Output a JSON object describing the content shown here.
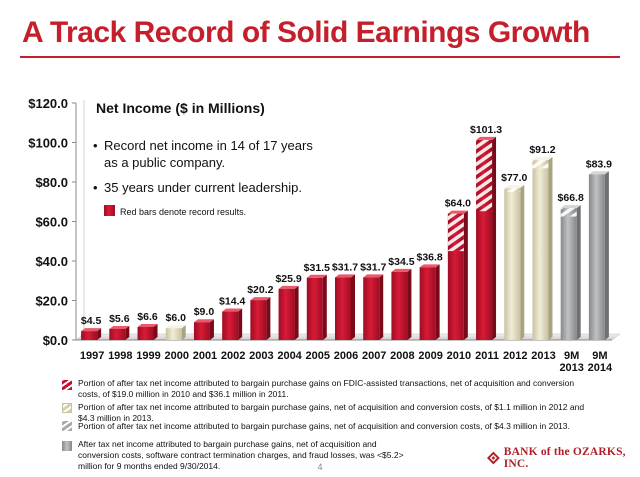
{
  "slide_title": "A Track Record of Solid Earnings Growth",
  "page_number": "4",
  "logo_text": "BANK of the OZARKS, INC.",
  "chart_data": {
    "type": "bar",
    "title": "Net Income ($ in Millions)",
    "xlabel": "",
    "ylabel": "",
    "ylim": [
      0,
      120
    ],
    "y_ticks": [
      "$0.0",
      "$20.0",
      "$40.0",
      "$60.0",
      "$80.0",
      "$100.0",
      "$120.0"
    ],
    "y_tick_values": [
      0,
      20,
      40,
      60,
      80,
      100,
      120
    ],
    "grid": false,
    "categories": [
      "1997",
      "1998",
      "1999",
      "2000",
      "2001",
      "2002",
      "2003",
      "2004",
      "2005",
      "2006",
      "2007",
      "2008",
      "2009",
      "2010",
      "2011",
      "2012",
      "2013",
      "9M 2013",
      "9M 2014"
    ],
    "values": [
      4.5,
      5.6,
      6.6,
      6.0,
      9.0,
      14.4,
      20.2,
      25.9,
      31.5,
      31.7,
      31.7,
      34.5,
      36.8,
      64.0,
      101.3,
      77.0,
      91.2,
      66.8,
      83.9
    ],
    "data_labels": [
      "$4.5",
      "$5.6",
      "$6.6",
      "$6.0",
      "$9.0",
      "$14.4",
      "$20.2",
      "$25.9",
      "$31.5",
      "$31.7",
      "$31.7",
      "$34.5",
      "$36.8",
      "$64.0",
      "$101.3",
      "$77.0",
      "$91.2",
      "$66.8",
      "$83.9"
    ],
    "bar_styles": [
      "record",
      "record",
      "record",
      "tan",
      "record",
      "record",
      "record",
      "record",
      "record",
      "record",
      "record",
      "record",
      "record",
      "record",
      "record",
      "tan",
      "tan",
      "gray",
      "gray"
    ],
    "hatched_portion": [
      0,
      0,
      0,
      0,
      0,
      0,
      0,
      0,
      0,
      0,
      0,
      0,
      0,
      19.0,
      36.1,
      1.1,
      4.3,
      4.3,
      0
    ],
    "annotations": [
      "Record net income in 14 of 17 years as a public company.",
      "35 years under current leadership."
    ],
    "legend": {
      "placement": "top-left",
      "entries": [
        "Red bars denote record results."
      ]
    },
    "footnotes": [
      {
        "style": "record-hatch",
        "text": "Portion of after tax net income attributed to bargain purchase gains on FDIC-assisted transactions, net of acquisition and conversion costs, of $19.0 million in 2010 and $36.1 million in 2011."
      },
      {
        "style": "tan-hatch",
        "text": "Portion of after tax net income attributed to bargain purchase gains, net of acquisition and conversion costs, of $1.1 million in 2012 and $4.3 million in 2013."
      },
      {
        "style": "gray-hatch",
        "text": "Portion of after tax net income attributed to bargain purchase gains, net of acquisition and conversion costs, of $4.3 million in 2013."
      },
      {
        "style": "gray-solid",
        "text": "After tax net income attributed to bargain purchase gains, net of acquisition and conversion costs, software contract termination charges, and fraud losses, was <$5.2> million for 9 months ended 9/30/2014."
      }
    ]
  },
  "colors": {
    "title": "#c41f2b",
    "record": "#c8102e",
    "tan": "#e7e1c5",
    "gray": "#a7a9ac",
    "gray_dark": "#8d8f92"
  }
}
